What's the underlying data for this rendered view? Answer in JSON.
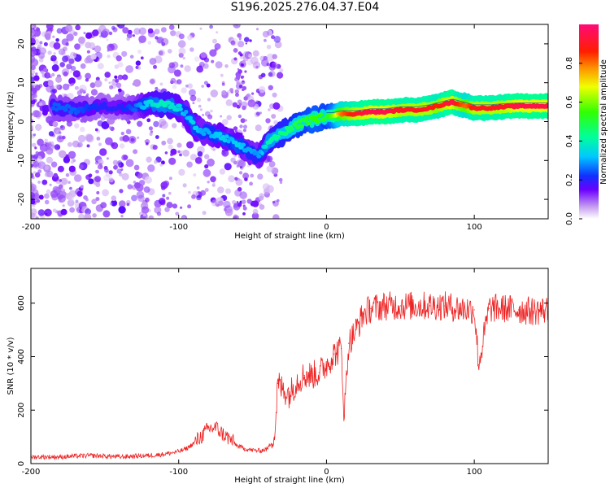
{
  "title": "S196.2025.276.04.37.E04",
  "colors": {
    "snr_line": "#ee2222",
    "ridge_line": "#2244aa",
    "axis": "#000000"
  },
  "chart_data": [
    {
      "type": "heatmap",
      "name": "spectrogram",
      "title": "S196.2025.276.04.37.E04",
      "xlabel": "Height of straight line (km)",
      "ylabel": "Frequency (Hz)",
      "xlim": [
        -200,
        150
      ],
      "ylim": [
        -25,
        25
      ],
      "xticks": [
        -200,
        -100,
        0,
        100
      ],
      "xtick_labels": [
        "-200",
        "-100",
        "0",
        "100"
      ],
      "yticks": [
        20,
        10,
        0,
        -10,
        -20
      ],
      "ytick_labels": [
        "20",
        "10",
        "0",
        "-10",
        "-20"
      ],
      "colorbar": {
        "label": "Normalized spectral amplitude",
        "range": [
          0,
          1
        ],
        "ticks": [
          0.0,
          0.2,
          0.4,
          0.6,
          0.8
        ],
        "tick_labels": [
          "0.0",
          "0.2",
          "0.4",
          "0.6",
          "0.8"
        ]
      },
      "ridge": {
        "x": [
          -180,
          -170,
          -160,
          -150,
          -140,
          -130,
          -120,
          -110,
          -100,
          -95,
          -90,
          -85,
          -80,
          -75,
          -70,
          -65,
          -60,
          -55,
          -50,
          -48,
          -45,
          -42,
          -40,
          -35,
          -30,
          -25,
          -20,
          -15,
          -10,
          -5,
          0,
          5,
          10,
          20,
          30,
          40,
          50,
          60,
          70,
          75,
          80,
          85,
          90,
          95,
          100,
          110,
          120,
          130,
          140,
          150
        ],
        "y": [
          3.5,
          3,
          3.5,
          4,
          3.5,
          3.5,
          4.5,
          4.5,
          3.5,
          2,
          -1,
          -2.5,
          -3,
          -3.5,
          -4,
          -5,
          -6,
          -7,
          -8,
          -9,
          -8.5,
          -7,
          -5.5,
          -4,
          -3,
          -2,
          -1,
          0,
          0.5,
          1,
          1.5,
          1.5,
          2,
          2,
          2.5,
          2.5,
          3,
          3,
          3.5,
          4,
          4.5,
          5,
          4.5,
          4,
          3.5,
          3.5,
          3.8,
          4,
          4,
          4
        ],
        "amplitude": [
          0.25,
          0.25,
          0.22,
          0.2,
          0.2,
          0.25,
          0.35,
          0.4,
          0.35,
          0.3,
          0.35,
          0.3,
          0.3,
          0.32,
          0.35,
          0.3,
          0.35,
          0.3,
          0.3,
          0.28,
          0.3,
          0.35,
          0.4,
          0.42,
          0.45,
          0.45,
          0.5,
          0.5,
          0.55,
          0.55,
          0.5,
          0.6,
          0.8,
          0.9,
          0.95,
          0.95,
          0.9,
          0.9,
          0.9,
          0.85,
          0.9,
          0.95,
          0.85,
          0.8,
          0.9,
          0.9,
          0.9,
          0.95,
          0.95,
          0.95
        ]
      }
    },
    {
      "type": "line",
      "name": "snr",
      "xlabel": "Height of straight line (km)",
      "ylabel": "SNR (10 * v/v)",
      "xlim": [
        -200,
        150
      ],
      "ylim": [
        0,
        730
      ],
      "xticks": [
        -200,
        -100,
        0,
        100
      ],
      "xtick_labels": [
        "-200",
        "-100",
        "0",
        "100"
      ],
      "yticks": [
        0,
        200,
        400,
        600
      ],
      "ytick_labels": [
        "0",
        "200",
        "400",
        "600"
      ],
      "series": [
        {
          "name": "SNR",
          "color": "#ee2222",
          "x": [
            -200,
            -190,
            -180,
            -170,
            -160,
            -150,
            -140,
            -130,
            -120,
            -110,
            -100,
            -95,
            -90,
            -85,
            -80,
            -75,
            -70,
            -65,
            -60,
            -55,
            -50,
            -45,
            -40,
            -35,
            -33,
            -30,
            -25,
            -20,
            -15,
            -10,
            -5,
            0,
            5,
            10,
            12,
            15,
            20,
            25,
            30,
            40,
            50,
            60,
            70,
            80,
            90,
            100,
            103,
            110,
            120,
            130,
            140,
            150
          ],
          "y": [
            25,
            25,
            25,
            28,
            30,
            28,
            25,
            28,
            30,
            35,
            45,
            55,
            75,
            100,
            130,
            135,
            110,
            90,
            65,
            55,
            50,
            48,
            55,
            100,
            300,
            280,
            260,
            310,
            330,
            330,
            340,
            370,
            410,
            430,
            180,
            450,
            500,
            560,
            580,
            590,
            590,
            590,
            590,
            590,
            580,
            575,
            370,
            580,
            580,
            575,
            570,
            575
          ]
        }
      ]
    }
  ]
}
